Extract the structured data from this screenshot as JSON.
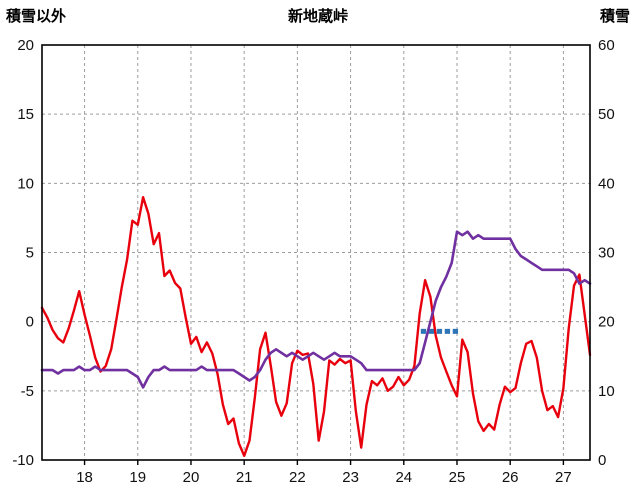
{
  "header": {
    "left_axis_label": "積雪以外",
    "title": "新地蔵峠",
    "right_axis_label": "積雪"
  },
  "chart_data": {
    "type": "line",
    "title": "新地蔵峠",
    "x_axis": {
      "min": 17.2,
      "max": 27.5,
      "ticks": [
        18,
        19,
        20,
        21,
        22,
        23,
        24,
        25,
        26,
        27
      ]
    },
    "left_axis": {
      "label": "積雪以外",
      "min": -10,
      "max": 20,
      "ticks": [
        -10,
        -5,
        0,
        5,
        10,
        15,
        20
      ]
    },
    "right_axis": {
      "label": "積雪",
      "min": 0,
      "max": 60,
      "ticks": [
        0,
        10,
        20,
        30,
        40,
        50,
        60
      ]
    },
    "grid": {
      "color": "#9d9d9d",
      "dash": "3 3"
    },
    "frame_color": "#000000",
    "series": [
      {
        "name": "積雪以外",
        "axis": "left",
        "color": "#e8000d",
        "width": 2.4,
        "x_start": 17.2,
        "x_step": 0.1,
        "values": [
          1,
          0.3,
          -0.6,
          -1.2,
          -1.5,
          -0.5,
          0.8,
          2.2,
          0.5,
          -1,
          -2.6,
          -3.6,
          -3.2,
          -2,
          0.2,
          2.5,
          4.5,
          7.3,
          7,
          9,
          7.8,
          5.6,
          6.4,
          3.3,
          3.7,
          2.8,
          2.4,
          0.3,
          -1.6,
          -1.1,
          -2.2,
          -1.5,
          -2.3,
          -3.8,
          -6,
          -7.4,
          -7,
          -8.8,
          -9.7,
          -8.6,
          -5.5,
          -2,
          -0.8,
          -3.2,
          -5.8,
          -6.8,
          -5.9,
          -3,
          -2.1,
          -2.4,
          -2.3,
          -4.5,
          -8.6,
          -6.5,
          -2.8,
          -3.1,
          -2.7,
          -3,
          -2.8,
          -6.5,
          -9.1,
          -6,
          -4.3,
          -4.6,
          -4.1,
          -5,
          -4.7,
          -4,
          -4.6,
          -4.2,
          -3.2,
          0.6,
          3,
          1.8,
          -1,
          -2.6,
          -3.6,
          -4.6,
          -5.4,
          -1.3,
          -2.2,
          -5.2,
          -7.2,
          -7.9,
          -7.4,
          -7.8,
          -6,
          -4.7,
          -5.1,
          -4.8,
          -3,
          -1.6,
          -1.4,
          -2.6,
          -5,
          -6.4,
          -6.1,
          -6.9,
          -4.8,
          -0.5,
          2.6,
          3.4,
          0.5,
          -2.4
        ]
      },
      {
        "name": "積雪",
        "axis": "right",
        "color": "#7030a0",
        "width": 2.6,
        "x_start": 17.2,
        "x_step": 0.1,
        "values": [
          13,
          13,
          13,
          12.5,
          13,
          13,
          13,
          13.5,
          13,
          13,
          13.5,
          13,
          13,
          13,
          13,
          13,
          13,
          12.5,
          12,
          10.5,
          12,
          13,
          13,
          13.5,
          13,
          13,
          13,
          13,
          13,
          13,
          13.5,
          13,
          13,
          13,
          13,
          13,
          13,
          12.5,
          12,
          11.5,
          12,
          13,
          14.5,
          15.5,
          16,
          15.5,
          15,
          15.5,
          15,
          14.5,
          15,
          15.5,
          15,
          14.5,
          15,
          15.5,
          15,
          15,
          15,
          14.5,
          14,
          13,
          13,
          13,
          13,
          13,
          13,
          13,
          13,
          13,
          13,
          14,
          17,
          20,
          23,
          25,
          26.5,
          28.5,
          33,
          32.5,
          33,
          32,
          32.5,
          32,
          32,
          32,
          32,
          32,
          32,
          30.5,
          29.5,
          29,
          28.5,
          28,
          27.5,
          27.5,
          27.5,
          27.5,
          27.5,
          27.5,
          27,
          25.5,
          26,
          25.5
        ]
      }
    ],
    "marks": {
      "name": "blue-dash-marks",
      "color": "#2e75b6",
      "y_left": -0.7,
      "thickness": 5,
      "segments": [
        [
          24.32,
          24.42
        ],
        [
          24.47,
          24.57
        ],
        [
          24.62,
          24.72
        ],
        [
          24.77,
          24.87
        ],
        [
          24.92,
          25.02
        ]
      ]
    }
  }
}
